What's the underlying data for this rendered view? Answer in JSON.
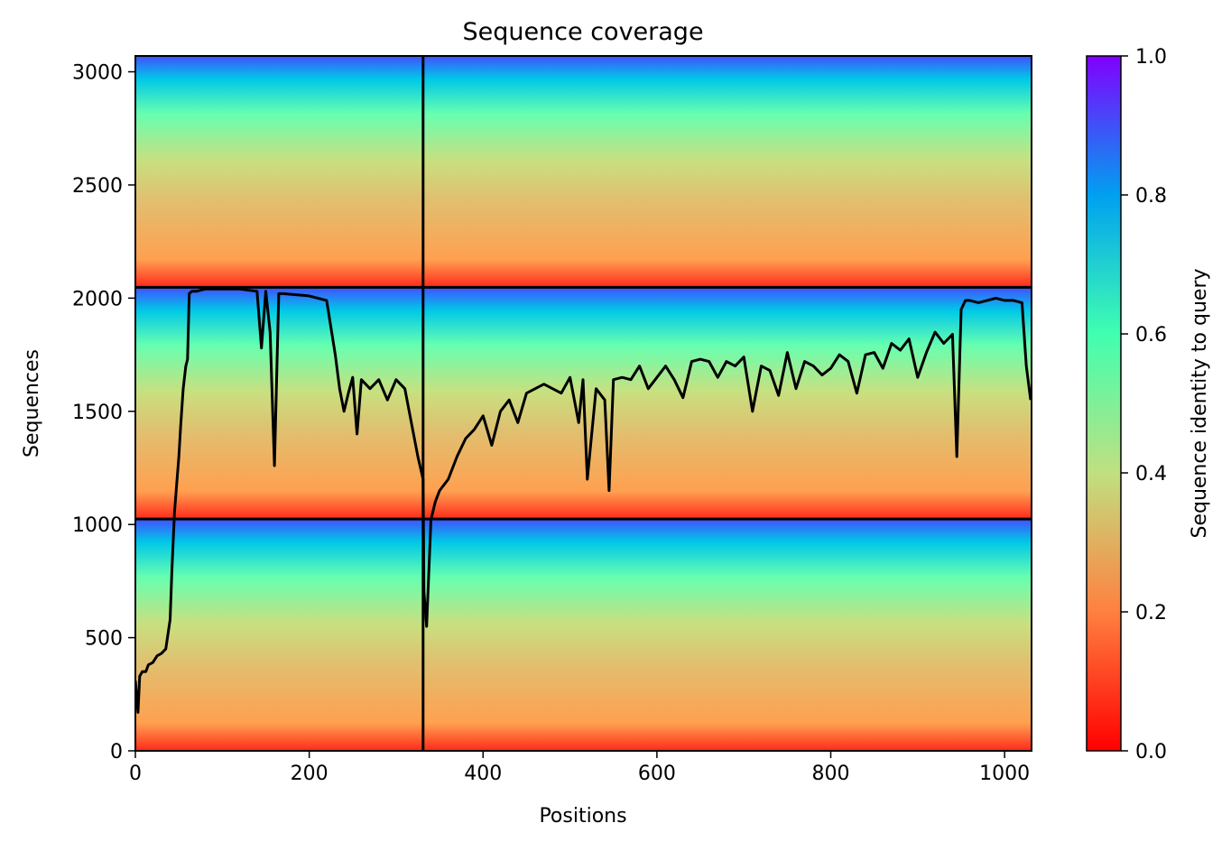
{
  "chart_data": {
    "type": "heatmap",
    "title": "Sequence coverage",
    "xlabel": "Positions",
    "ylabel": "Sequences",
    "xlim": [
      0,
      1031
    ],
    "ylim": [
      0,
      3070
    ],
    "x_ticks": [
      0,
      200,
      400,
      600,
      800,
      1000
    ],
    "y_ticks": [
      0,
      500,
      1000,
      1500,
      2000,
      2500,
      3000
    ],
    "colorbar": {
      "label": "Sequence identity to query",
      "range": [
        0,
        1
      ],
      "ticks": [
        "0.0",
        "0.2",
        "0.4",
        "0.6",
        "0.8",
        "1.0"
      ],
      "colormap": "rainbow_r"
    },
    "blocks": [
      {
        "x": [
          0,
          331
        ],
        "y": [
          0,
          1024
        ]
      },
      {
        "x": [
          331,
          1031
        ],
        "y": [
          0,
          1024
        ]
      },
      {
        "x": [
          0,
          331
        ],
        "y": [
          1024,
          2048
        ]
      },
      {
        "x": [
          331,
          1031
        ],
        "y": [
          1024,
          2048
        ]
      },
      {
        "x": [
          0,
          331
        ],
        "y": [
          2048,
          3070
        ]
      },
      {
        "x": [
          331,
          1031
        ],
        "y": [
          2048,
          3070
        ]
      }
    ],
    "chain_boundaries_x": [
      331
    ],
    "row_boundaries_y": [
      1024,
      2048
    ],
    "coverage_line": {
      "name": "coverage",
      "color": "#000000",
      "x": [
        0,
        3,
        5,
        8,
        12,
        15,
        20,
        25,
        30,
        35,
        40,
        42,
        45,
        48,
        50,
        52,
        55,
        58,
        60,
        62,
        65,
        68,
        70,
        80,
        100,
        120,
        140,
        145,
        150,
        155,
        160,
        165,
        170,
        200,
        220,
        230,
        235,
        240,
        245,
        250,
        255,
        260,
        270,
        280,
        290,
        300,
        310,
        320,
        325,
        331,
        332,
        335,
        340,
        345,
        350,
        360,
        370,
        380,
        390,
        400,
        410,
        420,
        430,
        440,
        450,
        460,
        470,
        480,
        490,
        500,
        510,
        515,
        520,
        530,
        540,
        545,
        550,
        560,
        570,
        580,
        590,
        600,
        610,
        620,
        630,
        640,
        650,
        660,
        670,
        680,
        690,
        700,
        710,
        715,
        720,
        730,
        740,
        750,
        760,
        770,
        780,
        790,
        800,
        810,
        820,
        830,
        840,
        850,
        860,
        870,
        880,
        890,
        900,
        910,
        920,
        930,
        940,
        945,
        950,
        955,
        960,
        970,
        980,
        990,
        1000,
        1010,
        1020,
        1025,
        1030
      ],
      "y": [
        310,
        170,
        330,
        350,
        350,
        380,
        390,
        420,
        430,
        450,
        580,
        800,
        1050,
        1200,
        1300,
        1430,
        1600,
        1700,
        1730,
        2020,
        2030,
        2030,
        2030,
        2040,
        2040,
        2040,
        2030,
        1780,
        2030,
        1850,
        1260,
        2020,
        2020,
        2010,
        1990,
        1750,
        1600,
        1500,
        1580,
        1650,
        1400,
        1640,
        1600,
        1640,
        1550,
        1640,
        1600,
        1400,
        1300,
        1200,
        700,
        550,
        1020,
        1100,
        1150,
        1200,
        1300,
        1380,
        1420,
        1480,
        1350,
        1500,
        1550,
        1450,
        1580,
        1600,
        1620,
        1600,
        1580,
        1650,
        1450,
        1640,
        1200,
        1600,
        1550,
        1150,
        1640,
        1650,
        1640,
        1700,
        1600,
        1650,
        1700,
        1640,
        1560,
        1720,
        1730,
        1720,
        1650,
        1720,
        1700,
        1740,
        1500,
        1600,
        1700,
        1680,
        1570,
        1760,
        1600,
        1720,
        1700,
        1660,
        1690,
        1750,
        1720,
        1580,
        1750,
        1760,
        1690,
        1800,
        1770,
        1820,
        1650,
        1760,
        1850,
        1800,
        1840,
        1300,
        1950,
        1990,
        1990,
        1980,
        1990,
        2000,
        1990,
        1990,
        1980,
        1700,
        1550
      ]
    }
  }
}
